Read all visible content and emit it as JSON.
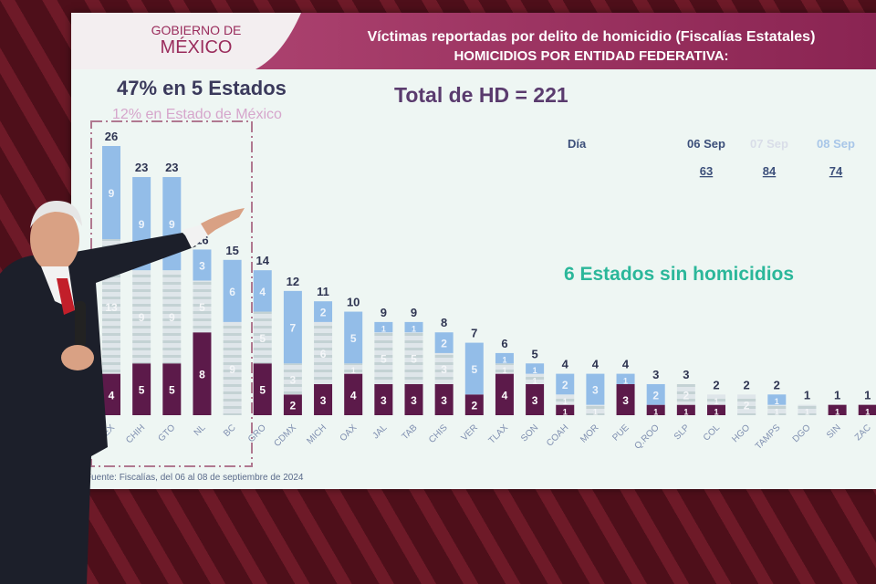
{
  "header": {
    "logo_line1": "GOBIERNO DE",
    "logo_line2": "MÉXICO",
    "title": "Víctimas reportadas por delito de homicidio (Fiscalías Estatales)",
    "subtitle": "HOMICIDIOS POR ENTIDAD FEDERATIVA:"
  },
  "highlights": {
    "pct_states": "47% en 5 Estados",
    "pct_edomex": "12% en Estado de México",
    "total": "Total de HD = 221",
    "no_homicides": "6 Estados sin homicidios"
  },
  "day_table": {
    "label": "Día",
    "days": [
      "06 Sep",
      "07 Sep",
      "08 Sep"
    ],
    "totals": [
      "63",
      "84",
      "74"
    ]
  },
  "source": "Fuente: Fiscalías, del 06 al 08 de septiembre de 2024",
  "colors": {
    "06 Sep": "#5c1a4a",
    "07 Sep": "#d3dde2",
    "08 Sep": "#93bde8",
    "header": "#9a2c5c",
    "accent_green": "#2bb79a"
  },
  "chart_data": {
    "type": "bar",
    "stacked": true,
    "title": "",
    "categories": [
      "MEX",
      "CHIH",
      "GTO",
      "NL",
      "BC",
      "GRO",
      "CDMX",
      "MICH",
      "OAX",
      "JAL",
      "TAB",
      "CHIS",
      "VER",
      "TLAX",
      "SON",
      "COAH",
      "MOR",
      "PUE",
      "Q.ROO",
      "SLP",
      "COL",
      "HGO",
      "TAMPS",
      "DGO",
      "SIN",
      "ZAC"
    ],
    "totals": [
      26,
      23,
      23,
      16,
      15,
      14,
      12,
      11,
      10,
      9,
      9,
      8,
      7,
      6,
      5,
      4,
      4,
      4,
      3,
      3,
      2,
      2,
      2,
      1,
      1,
      1
    ],
    "series": [
      {
        "name": "06 Sep",
        "values": [
          4,
          5,
          5,
          8,
          0,
          5,
          2,
          3,
          4,
          3,
          3,
          3,
          2,
          4,
          3,
          1,
          0,
          3,
          1,
          1,
          1,
          0,
          0,
          0,
          1,
          1
        ]
      },
      {
        "name": "07 Sep",
        "values": [
          13,
          9,
          9,
          5,
          9,
          5,
          3,
          6,
          1,
          5,
          5,
          3,
          0,
          1,
          1,
          1,
          1,
          0,
          0,
          2,
          1,
          2,
          1,
          1,
          0,
          0
        ]
      },
      {
        "name": "08 Sep",
        "values": [
          9,
          9,
          9,
          3,
          6,
          4,
          7,
          2,
          5,
          1,
          1,
          2,
          5,
          1,
          1,
          2,
          3,
          1,
          2,
          0,
          0,
          0,
          1,
          0,
          0,
          0
        ]
      }
    ],
    "ylim": [
      0,
      26
    ],
    "grid": false,
    "highlight_box": [
      "MEX",
      "CHIH",
      "GTO",
      "NL",
      "BC"
    ]
  }
}
